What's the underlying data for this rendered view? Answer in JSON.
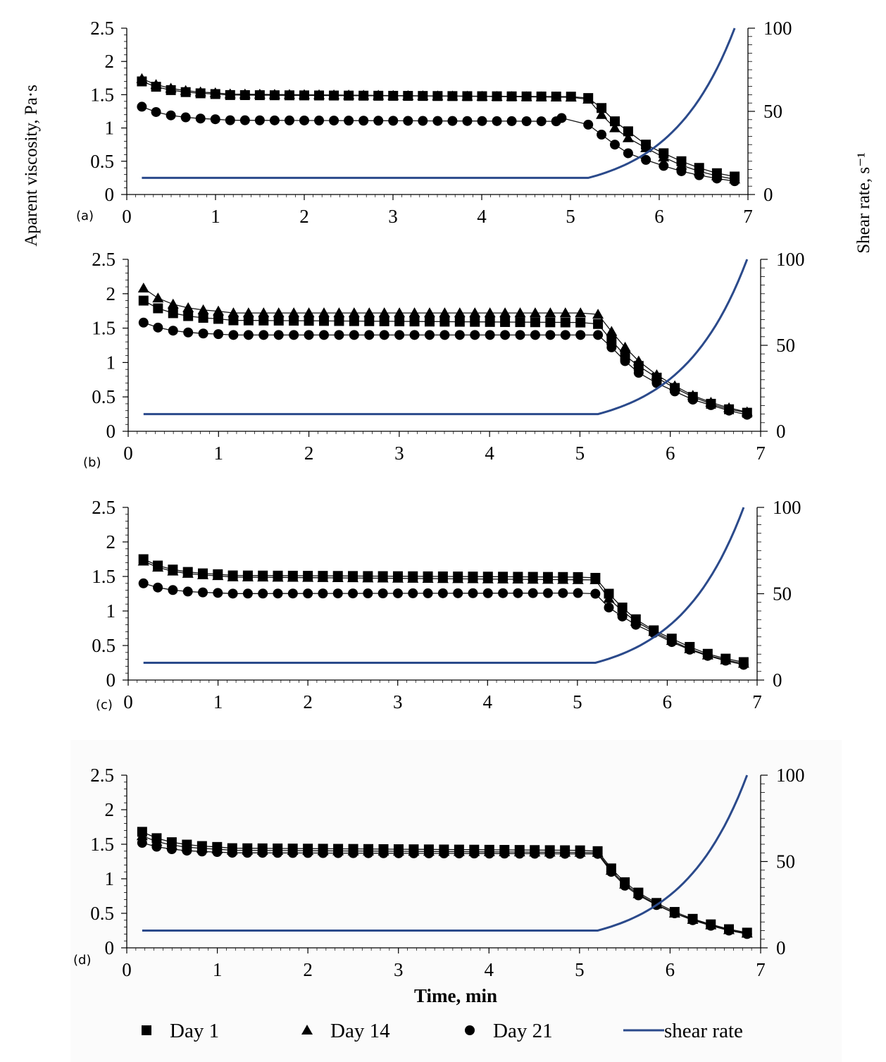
{
  "chart_data": {
    "type": "scatter",
    "xlabel": "Time, min",
    "ylabel_left": "Aparent viscosity, Pa·s",
    "ylabel_right": "Shear rate, s⁻¹",
    "x_ticks": [
      "0",
      "1",
      "2",
      "3",
      "4",
      "5",
      "6",
      "7"
    ],
    "y_left_ticks": [
      "0",
      "0.5",
      "1",
      "1.5",
      "2",
      "2.5"
    ],
    "y_right_ticks": [
      "0",
      "50",
      "100"
    ],
    "xlim": [
      0,
      7
    ],
    "ylim_left": [
      0,
      2.5
    ],
    "ylim_right": [
      0,
      100
    ],
    "legend": [
      {
        "name": "Day 1",
        "marker": "square"
      },
      {
        "name": "Day 14",
        "marker": "triangle"
      },
      {
        "name": "Day 21",
        "marker": "circle"
      },
      {
        "name": "shear rate",
        "marker": "line",
        "color": "#2b4a8b"
      }
    ],
    "shear_rate": {
      "name": "shear rate",
      "x": [
        0.17,
        5.2,
        5.5,
        5.8,
        6.1,
        6.4,
        6.7,
        6.85
      ],
      "values": [
        10,
        10,
        16,
        26,
        40,
        60,
        85,
        100
      ]
    },
    "panels": [
      {
        "label": "(a)",
        "series": [
          {
            "name": "Day 1",
            "x": [
              0.17,
              5.2,
              5.35,
              5.5,
              5.65,
              5.85,
              6.05,
              6.25,
              6.45,
              6.65,
              6.85
            ],
            "values": [
              1.7,
              1.45,
              1.3,
              1.1,
              0.95,
              0.75,
              0.62,
              0.5,
              0.4,
              0.32,
              0.27
            ],
            "plateau": [
              1.5,
              1.47
            ]
          },
          {
            "name": "Day 14",
            "x": [
              0.17,
              5.2,
              5.35,
              5.5,
              5.65,
              5.85,
              6.05,
              6.25,
              6.45,
              6.65,
              6.85
            ],
            "values": [
              1.74,
              1.43,
              1.2,
              1.0,
              0.85,
              0.7,
              0.56,
              0.44,
              0.35,
              0.28,
              0.23
            ],
            "plateau": [
              1.52,
              1.46
            ]
          },
          {
            "name": "Day 21",
            "x": [
              0.17,
              4.9,
              5.2,
              5.35,
              5.5,
              5.65,
              5.85,
              6.05,
              6.25,
              6.45,
              6.65,
              6.85
            ],
            "values": [
              1.32,
              1.15,
              1.05,
              0.9,
              0.75,
              0.62,
              0.52,
              0.43,
              0.35,
              0.29,
              0.24,
              0.2
            ],
            "plateau": [
              1.12,
              1.1
            ]
          }
        ]
      },
      {
        "label": "(b)",
        "series": [
          {
            "name": "Day 1",
            "x": [
              0.17,
              5.2,
              5.35,
              5.5,
              5.65,
              5.85,
              6.05,
              6.25,
              6.45,
              6.65,
              6.85
            ],
            "values": [
              1.9,
              1.56,
              1.32,
              1.1,
              0.95,
              0.78,
              0.63,
              0.5,
              0.4,
              0.32,
              0.27
            ],
            "plateau": [
              1.62,
              1.58
            ]
          },
          {
            "name": "Day 14",
            "x": [
              0.17,
              5.2,
              5.35,
              5.5,
              5.65,
              5.85,
              6.05,
              6.25,
              6.45,
              6.65,
              6.85
            ],
            "values": [
              2.08,
              1.7,
              1.45,
              1.22,
              1.02,
              0.82,
              0.66,
              0.52,
              0.42,
              0.34,
              0.28
            ],
            "plateau": [
              1.72,
              1.72
            ]
          },
          {
            "name": "Day 21",
            "x": [
              0.17,
              5.2,
              5.35,
              5.5,
              5.65,
              5.85,
              6.05,
              6.25,
              6.45,
              6.65,
              6.85
            ],
            "values": [
              1.58,
              1.4,
              1.22,
              1.02,
              0.85,
              0.7,
              0.58,
              0.46,
              0.38,
              0.3,
              0.24
            ],
            "plateau": [
              1.4,
              1.4
            ]
          }
        ]
      },
      {
        "label": "(c)",
        "series": [
          {
            "name": "Day 1",
            "x": [
              0.17,
              5.2,
              5.35,
              5.5,
              5.65,
              5.85,
              6.05,
              6.25,
              6.45,
              6.65,
              6.85
            ],
            "values": [
              1.75,
              1.48,
              1.25,
              1.05,
              0.88,
              0.72,
              0.6,
              0.48,
              0.38,
              0.31,
              0.26
            ],
            "plateau": [
              1.52,
              1.49
            ]
          },
          {
            "name": "Day 14",
            "x": [
              0.17,
              5.2,
              5.35,
              5.5,
              5.65,
              5.85,
              6.05,
              6.25,
              6.45,
              6.65,
              6.85
            ],
            "values": [
              1.72,
              1.45,
              1.18,
              1.0,
              0.85,
              0.7,
              0.57,
              0.45,
              0.36,
              0.29,
              0.24
            ],
            "plateau": [
              1.5,
              1.45
            ]
          },
          {
            "name": "Day 21",
            "x": [
              0.17,
              5.2,
              5.35,
              5.5,
              5.65,
              5.85,
              6.05,
              6.25,
              6.45,
              6.65,
              6.85
            ],
            "values": [
              1.4,
              1.25,
              1.05,
              0.92,
              0.8,
              0.68,
              0.55,
              0.44,
              0.35,
              0.28,
              0.22
            ],
            "plateau": [
              1.25,
              1.26
            ]
          }
        ]
      },
      {
        "label": "(d)",
        "series": [
          {
            "name": "Day 1",
            "x": [
              0.17,
              5.2,
              5.35,
              5.5,
              5.65,
              5.85,
              6.05,
              6.25,
              6.45,
              6.65,
              6.85
            ],
            "values": [
              1.68,
              1.4,
              1.15,
              0.95,
              0.8,
              0.65,
              0.52,
              0.42,
              0.34,
              0.27,
              0.22
            ],
            "plateau": [
              1.45,
              1.41
            ]
          },
          {
            "name": "Day 14",
            "x": [
              0.17,
              5.2,
              5.35,
              5.5,
              5.65,
              5.85,
              6.05,
              6.25,
              6.45,
              6.65,
              6.85
            ],
            "values": [
              1.62,
              1.38,
              1.12,
              0.92,
              0.78,
              0.63,
              0.5,
              0.41,
              0.33,
              0.26,
              0.21
            ],
            "plateau": [
              1.42,
              1.38
            ]
          },
          {
            "name": "Day 21",
            "x": [
              0.17,
              5.2,
              5.35,
              5.5,
              5.65,
              5.85,
              6.05,
              6.25,
              6.45,
              6.65,
              6.85
            ],
            "values": [
              1.52,
              1.36,
              1.1,
              0.9,
              0.76,
              0.62,
              0.5,
              0.4,
              0.32,
              0.25,
              0.2
            ],
            "plateau": [
              1.38,
              1.36
            ]
          }
        ]
      }
    ]
  }
}
